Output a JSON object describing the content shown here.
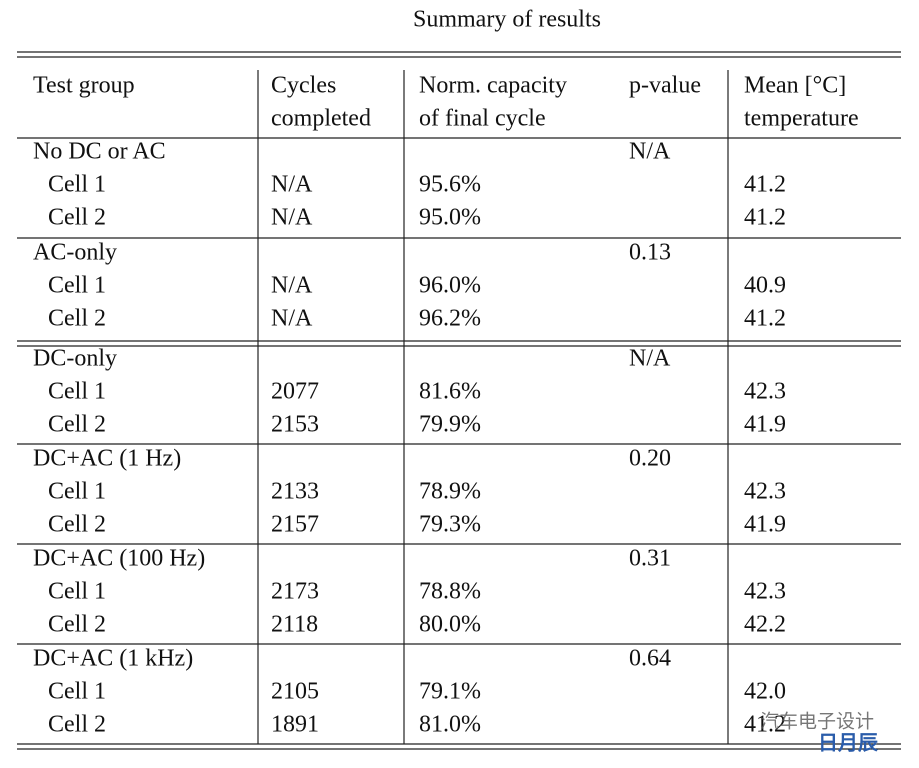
{
  "title": "Summary of results",
  "table": {
    "header": [
      [
        "Test group"
      ],
      [
        "Cycles",
        "completed"
      ],
      [
        "Norm. capacity",
        "of final cycle"
      ],
      [
        "p-value"
      ],
      [
        "Mean [°C]",
        "temperature"
      ]
    ],
    "groups": [
      {
        "name": "No DC or AC",
        "p_value": "N/A",
        "rows": [
          [
            "Cell 1",
            "N/A",
            "95.6%",
            "41.2"
          ],
          [
            "Cell 2",
            "N/A",
            "95.0%",
            "41.2"
          ]
        ]
      },
      {
        "name": "AC-only",
        "p_value": "0.13",
        "rows": [
          [
            "Cell 1",
            "N/A",
            "96.0%",
            "40.9"
          ],
          [
            "Cell 2",
            "N/A",
            "96.2%",
            "41.2"
          ]
        ]
      },
      {
        "name": "DC-only",
        "p_value": "N/A",
        "rows": [
          [
            "Cell 1",
            "2077",
            "81.6%",
            "42.3"
          ],
          [
            "Cell 2",
            "2153",
            "79.9%",
            "41.9"
          ]
        ]
      },
      {
        "name": "DC+AC (1 Hz)",
        "p_value": "0.20",
        "rows": [
          [
            "Cell 1",
            "2133",
            "78.9%",
            "42.3"
          ],
          [
            "Cell 2",
            "2157",
            "79.3%",
            "41.9"
          ]
        ]
      },
      {
        "name": "DC+AC (100 Hz)",
        "p_value": "0.31",
        "rows": [
          [
            "Cell 1",
            "2173",
            "78.8%",
            "42.3"
          ],
          [
            "Cell 2",
            "2118",
            "80.0%",
            "42.2"
          ]
        ]
      },
      {
        "name": "DC+AC (1 kHz)",
        "p_value": "0.64",
        "rows": [
          [
            "Cell 1",
            "2105",
            "79.1%",
            "42.0"
          ],
          [
            "Cell 2",
            "1891",
            "81.0%",
            "41.2"
          ]
        ]
      }
    ]
  },
  "watermark": {
    "text": "汽车电子设计",
    "logo": "日月辰"
  }
}
